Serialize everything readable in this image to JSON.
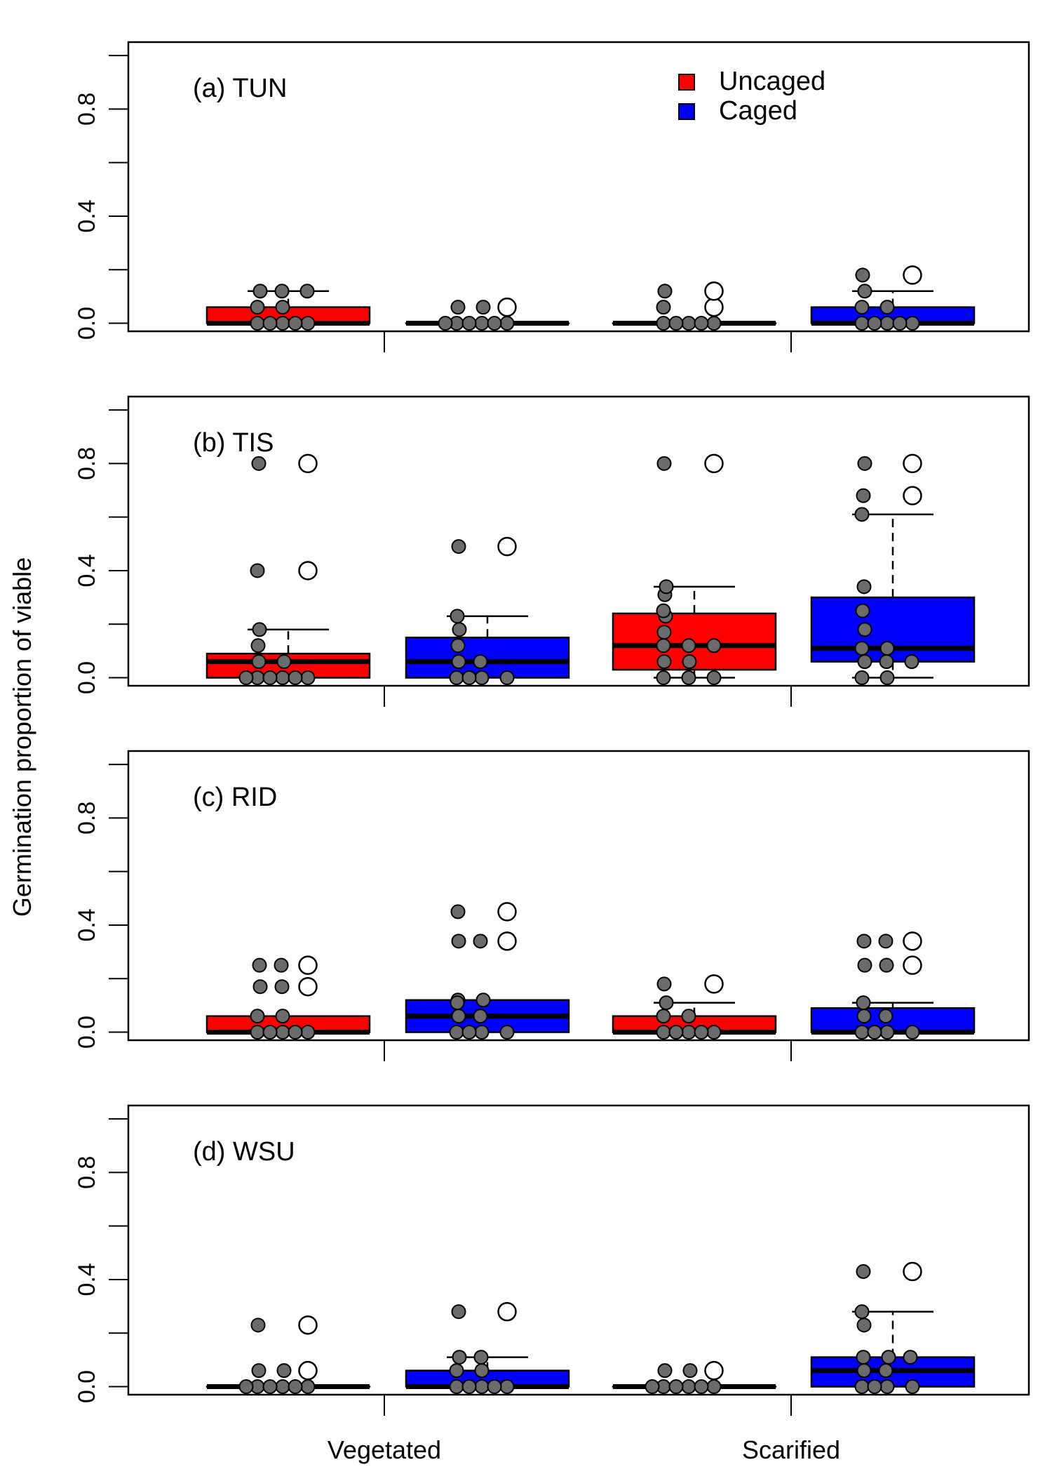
{
  "ylabel": "Germination proportion of viable",
  "x_groups": [
    "Vegetated",
    "Scarified"
  ],
  "legend": {
    "position": "top-right",
    "entries": [
      {
        "name": "Uncaged",
        "color": "#ff0000"
      },
      {
        "name": "Caged",
        "color": "#0000ff"
      }
    ]
  },
  "colors": {
    "uncaged": "#ff0000",
    "caged": "#0000ff",
    "point_fill": "#6b6b6b",
    "outlier_fill": "#ffffff"
  },
  "chart_data": [
    {
      "type": "box",
      "title": "(a) TUN",
      "ylim": [
        -0.03,
        1.05
      ],
      "yticks": [
        0.0,
        0.4,
        0.8
      ],
      "ytick_labels": [
        "0.0",
        "0.4",
        "0.8"
      ],
      "minor_yticks": [
        0.2,
        0.6,
        1.0
      ],
      "boxes": [
        {
          "group": "Vegetated",
          "treatment": "Uncaged",
          "q1": 0.0,
          "median": 0.0,
          "q3": 0.06,
          "whisker_low": 0.0,
          "whisker_high": 0.12,
          "outliers": [],
          "points": [
            0,
            0,
            0,
            0,
            0,
            0.06,
            0.06,
            0.12,
            0.12,
            0.12
          ]
        },
        {
          "group": "Vegetated",
          "treatment": "Caged",
          "q1": 0.0,
          "median": 0.0,
          "q3": 0.0,
          "whisker_low": 0.0,
          "whisker_high": 0.0,
          "outliers": [
            0.06
          ],
          "points": [
            0,
            0,
            0,
            0,
            0,
            0,
            0.06,
            0.06
          ]
        },
        {
          "group": "Scarified",
          "treatment": "Uncaged",
          "q1": 0.0,
          "median": 0.0,
          "q3": 0.0,
          "whisker_low": 0.0,
          "whisker_high": 0.0,
          "outliers": [
            0.06,
            0.12
          ],
          "points": [
            0,
            0,
            0,
            0,
            0,
            0.06,
            0.12
          ]
        },
        {
          "group": "Scarified",
          "treatment": "Caged",
          "q1": 0.0,
          "median": 0.0,
          "q3": 0.06,
          "whisker_low": 0.0,
          "whisker_high": 0.12,
          "outliers": [
            0.18
          ],
          "points": [
            0,
            0,
            0,
            0,
            0,
            0.06,
            0.06,
            0.12,
            0.18
          ]
        }
      ]
    },
    {
      "type": "box",
      "title": "(b) TIS",
      "ylim": [
        -0.03,
        1.05
      ],
      "yticks": [
        0.0,
        0.4,
        0.8
      ],
      "ytick_labels": [
        "0.0",
        "0.4",
        "0.8"
      ],
      "minor_yticks": [
        0.2,
        0.6,
        1.0
      ],
      "boxes": [
        {
          "group": "Vegetated",
          "treatment": "Uncaged",
          "q1": 0.0,
          "median": 0.06,
          "q3": 0.09,
          "whisker_low": 0.0,
          "whisker_high": 0.18,
          "outliers": [
            0.4,
            0.8
          ],
          "points": [
            0,
            0,
            0,
            0,
            0,
            0,
            0.06,
            0.06,
            0.12,
            0.18,
            0.4,
            0.8
          ]
        },
        {
          "group": "Vegetated",
          "treatment": "Caged",
          "q1": 0.0,
          "median": 0.06,
          "q3": 0.15,
          "whisker_low": 0.0,
          "whisker_high": 0.23,
          "outliers": [
            0.49
          ],
          "points": [
            0,
            0,
            0,
            0,
            0.06,
            0.06,
            0.12,
            0.18,
            0.23,
            0.49
          ]
        },
        {
          "group": "Scarified",
          "treatment": "Uncaged",
          "q1": 0.03,
          "median": 0.12,
          "q3": 0.24,
          "whisker_low": 0.0,
          "whisker_high": 0.34,
          "outliers": [
            0.8
          ],
          "points": [
            0,
            0,
            0,
            0.06,
            0.06,
            0.12,
            0.12,
            0.12,
            0.17,
            0.23,
            0.25,
            0.31,
            0.34,
            0.8
          ]
        },
        {
          "group": "Scarified",
          "treatment": "Caged",
          "q1": 0.06,
          "median": 0.11,
          "q3": 0.3,
          "whisker_low": 0.0,
          "whisker_high": 0.61,
          "outliers": [
            0.68,
            0.8
          ],
          "points": [
            0,
            0,
            0.06,
            0.06,
            0.06,
            0.11,
            0.11,
            0.18,
            0.25,
            0.34,
            0.61,
            0.68,
            0.8
          ]
        }
      ]
    },
    {
      "type": "box",
      "title": "(c) RID",
      "ylim": [
        -0.03,
        1.05
      ],
      "yticks": [
        0.0,
        0.4,
        0.8
      ],
      "ytick_labels": [
        "0.0",
        "0.4",
        "0.8"
      ],
      "minor_yticks": [
        0.2,
        0.6,
        1.0
      ],
      "boxes": [
        {
          "group": "Vegetated",
          "treatment": "Uncaged",
          "q1": 0.0,
          "median": 0.0,
          "q3": 0.06,
          "whisker_low": 0.0,
          "whisker_high": 0.06,
          "outliers": [
            0.17,
            0.25
          ],
          "points": [
            0,
            0,
            0,
            0,
            0,
            0.06,
            0.06,
            0.17,
            0.17,
            0.25,
            0.25
          ]
        },
        {
          "group": "Vegetated",
          "treatment": "Caged",
          "q1": 0.0,
          "median": 0.06,
          "q3": 0.12,
          "whisker_low": 0.0,
          "whisker_high": 0.12,
          "outliers": [
            0.34,
            0.45
          ],
          "points": [
            0,
            0,
            0,
            0,
            0.06,
            0.06,
            0.12,
            0.12,
            0.11,
            0.34,
            0.34,
            0.45
          ]
        },
        {
          "group": "Scarified",
          "treatment": "Uncaged",
          "q1": 0.0,
          "median": 0.0,
          "q3": 0.06,
          "whisker_low": 0.0,
          "whisker_high": 0.11,
          "outliers": [
            0.18
          ],
          "points": [
            0,
            0,
            0,
            0,
            0,
            0.06,
            0.06,
            0.11,
            0.18
          ]
        },
        {
          "group": "Scarified",
          "treatment": "Caged",
          "q1": 0.0,
          "median": 0.0,
          "q3": 0.09,
          "whisker_low": 0.0,
          "whisker_high": 0.11,
          "outliers": [
            0.25,
            0.34
          ],
          "points": [
            0,
            0,
            0,
            0,
            0.06,
            0.06,
            0.11,
            0.25,
            0.25,
            0.34,
            0.34
          ]
        }
      ]
    },
    {
      "type": "box",
      "title": "(d) WSU",
      "ylim": [
        -0.03,
        1.05
      ],
      "yticks": [
        0.0,
        0.4,
        0.8
      ],
      "ytick_labels": [
        "0.0",
        "0.4",
        "0.8"
      ],
      "minor_yticks": [
        0.2,
        0.6,
        1.0
      ],
      "boxes": [
        {
          "group": "Vegetated",
          "treatment": "Uncaged",
          "q1": 0.0,
          "median": 0.0,
          "q3": 0.0,
          "whisker_low": 0.0,
          "whisker_high": 0.0,
          "outliers": [
            0.06,
            0.23
          ],
          "points": [
            0,
            0,
            0,
            0,
            0,
            0,
            0.06,
            0.06,
            0.23
          ]
        },
        {
          "group": "Vegetated",
          "treatment": "Caged",
          "q1": 0.0,
          "median": 0.0,
          "q3": 0.06,
          "whisker_low": 0.0,
          "whisker_high": 0.11,
          "outliers": [
            0.28
          ],
          "points": [
            0,
            0,
            0,
            0,
            0,
            0.06,
            0.06,
            0.11,
            0.11,
            0.28
          ]
        },
        {
          "group": "Scarified",
          "treatment": "Uncaged",
          "q1": 0.0,
          "median": 0.0,
          "q3": 0.0,
          "whisker_low": 0.0,
          "whisker_high": 0.0,
          "outliers": [
            0.06
          ],
          "points": [
            0,
            0,
            0,
            0,
            0,
            0,
            0.06,
            0.06
          ]
        },
        {
          "group": "Scarified",
          "treatment": "Caged",
          "q1": 0.0,
          "median": 0.06,
          "q3": 0.11,
          "whisker_low": 0.0,
          "whisker_high": 0.28,
          "outliers": [
            0.43
          ],
          "points": [
            0,
            0,
            0,
            0,
            0.06,
            0.06,
            0.11,
            0.11,
            0.11,
            0.23,
            0.28,
            0.43
          ]
        }
      ]
    }
  ]
}
